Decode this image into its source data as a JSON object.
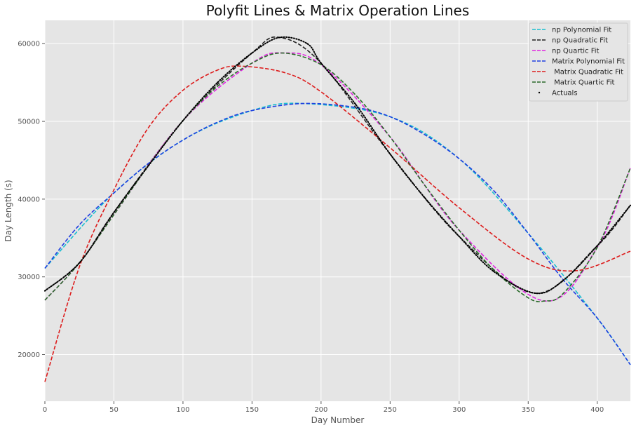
{
  "chart_data": {
    "type": "line",
    "title": "Polyfit Lines & Matrix Operation Lines",
    "xlabel": "Day Number",
    "ylabel": "Day Length (s)",
    "xlim": [
      0,
      424
    ],
    "ylim": [
      14000,
      63000
    ],
    "x_ticks": [
      0,
      50,
      100,
      150,
      200,
      250,
      300,
      350,
      400
    ],
    "y_ticks": [
      20000,
      30000,
      40000,
      50000,
      60000
    ],
    "x_tick_labels": [
      "0",
      "50",
      "100",
      "150",
      "200",
      "250",
      "300",
      "350",
      "400"
    ],
    "y_tick_labels": [
      "20000",
      "30000",
      "40000",
      "50000",
      "60000"
    ],
    "grid": true,
    "legend_position": "top-right",
    "background": "#e5e5e5",
    "series": [
      {
        "name": "np Polynomial Fit",
        "color": "#17becf",
        "style": "dashed",
        "x": [
          0,
          50,
          100,
          150,
          187,
          250,
          300,
          350,
          400,
          424
        ],
        "y": [
          31100,
          40800,
          47600,
          51400,
          52300,
          50600,
          45200,
          35600,
          24700,
          18700
        ]
      },
      {
        "name": "np Quadratic Fit",
        "color": "#222222",
        "style": "dashed",
        "x": [
          0,
          25,
          50,
          100,
          150,
          170,
          200,
          250,
          300,
          355,
          400,
          424
        ],
        "y": [
          28200,
          31800,
          38300,
          50100,
          58800,
          60800,
          57500,
          45800,
          35200,
          27900,
          34000,
          39200
        ]
      },
      {
        "name": "np Quartic Fit",
        "color": "#e024e0",
        "style": "dashed",
        "x": [
          0,
          25,
          50,
          100,
          150,
          172,
          200,
          250,
          300,
          362,
          400,
          424
        ],
        "y": [
          27000,
          31800,
          38000,
          50100,
          57500,
          58800,
          57300,
          48000,
          36000,
          26900,
          33800,
          44000
        ]
      },
      {
        "name": "Matrix Polynomial Fit",
        "color": "#1f3fe0",
        "style": "dashed",
        "x": [
          0,
          25,
          50,
          75,
          100,
          125,
          150,
          187,
          225,
          250,
          275,
          300,
          325,
          350,
          375,
          400,
          424
        ],
        "y": [
          31100,
          36700,
          40800,
          44600,
          47600,
          49900,
          51400,
          52300,
          51800,
          50600,
          48300,
          45200,
          41100,
          35600,
          29700,
          24700,
          18700
        ]
      },
      {
        "name": " Matrix Quadratic Fit",
        "color": "#dd1c1c",
        "style": "dashed",
        "x": [
          0,
          25,
          50,
          75,
          100,
          125,
          143,
          175,
          200,
          250,
          300,
          350,
          385,
          424
        ],
        "y": [
          16500,
          31300,
          41200,
          49200,
          54000,
          56600,
          57100,
          56200,
          53800,
          46600,
          38900,
          32300,
          30800,
          33300
        ]
      },
      {
        "name": " Matrix Quartic Fit",
        "color": "#2a6a2a",
        "style": "dashed",
        "x": [
          0,
          25,
          50,
          75,
          100,
          125,
          150,
          172,
          200,
          225,
          250,
          275,
          300,
          325,
          350,
          362,
          375,
          400,
          424
        ],
        "y": [
          27000,
          31800,
          38000,
          44300,
          50100,
          54500,
          57500,
          58800,
          57300,
          53400,
          48000,
          41800,
          36000,
          30900,
          27300,
          26900,
          27800,
          33800,
          44000
        ]
      },
      {
        "name": "Actuals",
        "color": "#000000",
        "style": "dotted",
        "x": [
          0,
          25,
          50,
          75,
          100,
          125,
          150,
          170,
          190,
          200,
          225,
          250,
          275,
          300,
          325,
          355,
          375,
          400,
          424
        ],
        "y": [
          28200,
          31800,
          38300,
          44300,
          50100,
          55000,
          58800,
          60800,
          60000,
          57500,
          52200,
          45800,
          40200,
          35200,
          30700,
          27900,
          29500,
          34000,
          39200
        ]
      }
    ]
  }
}
